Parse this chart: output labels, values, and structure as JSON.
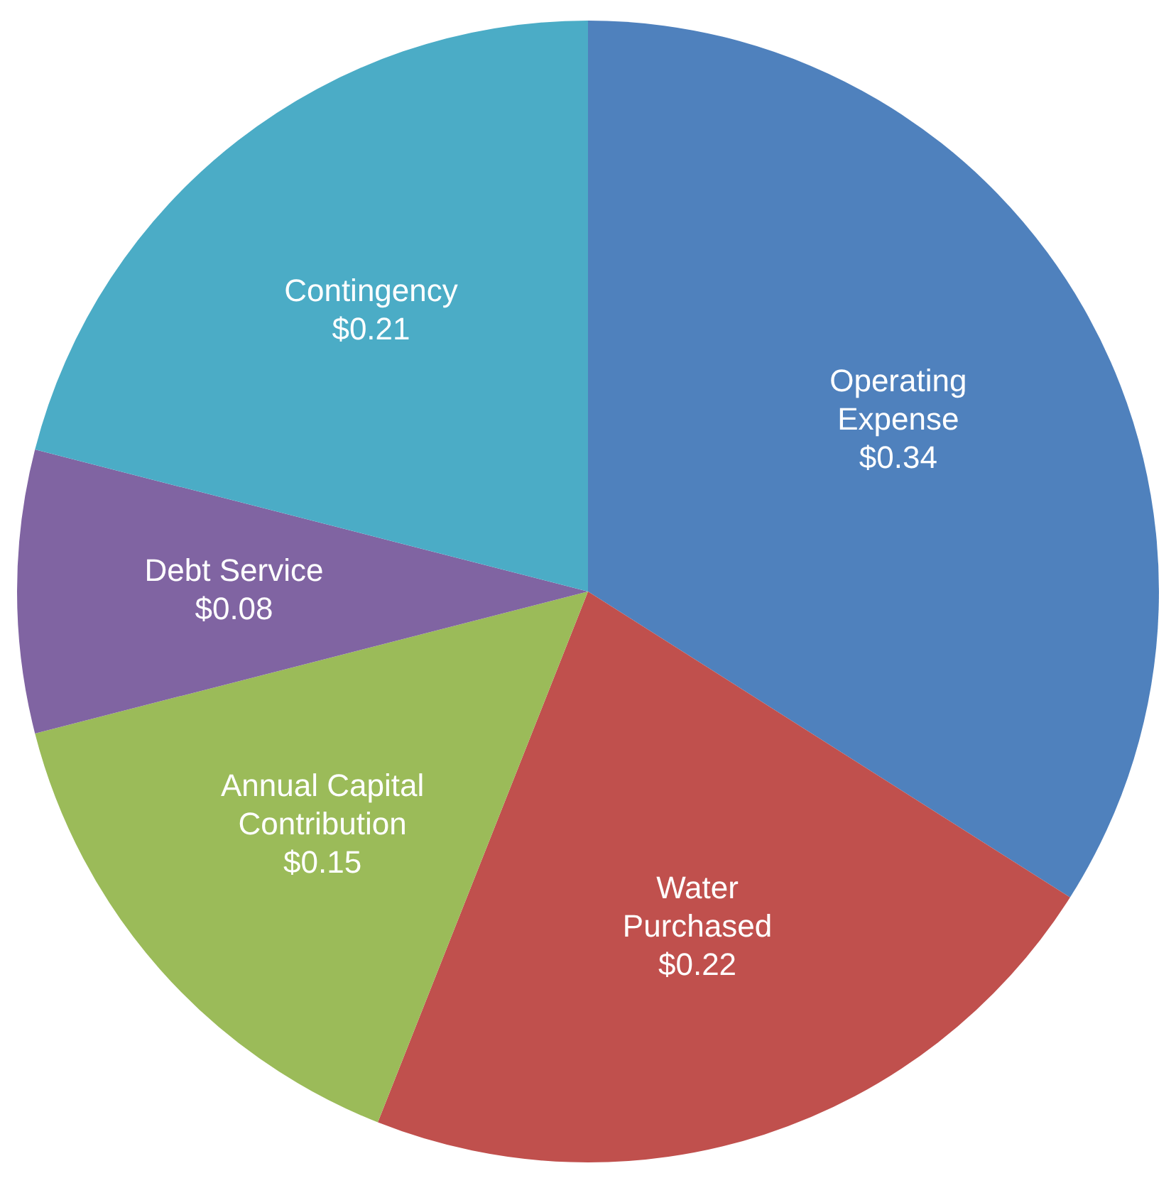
{
  "chart_data": {
    "type": "pie",
    "categories": [
      "Operating Expense",
      "Water Purchased",
      "Annual Capital Contribution",
      "Debt Service",
      "Contingency"
    ],
    "values": [
      0.34,
      0.22,
      0.15,
      0.08,
      0.21
    ],
    "value_labels": [
      "$0.34",
      "$0.22",
      "$0.15",
      "$0.08",
      "$0.21"
    ],
    "colors": [
      "#4f81bd",
      "#c0504d",
      "#9bbb59",
      "#8064a2",
      "#4bacc6"
    ],
    "legend": false
  }
}
